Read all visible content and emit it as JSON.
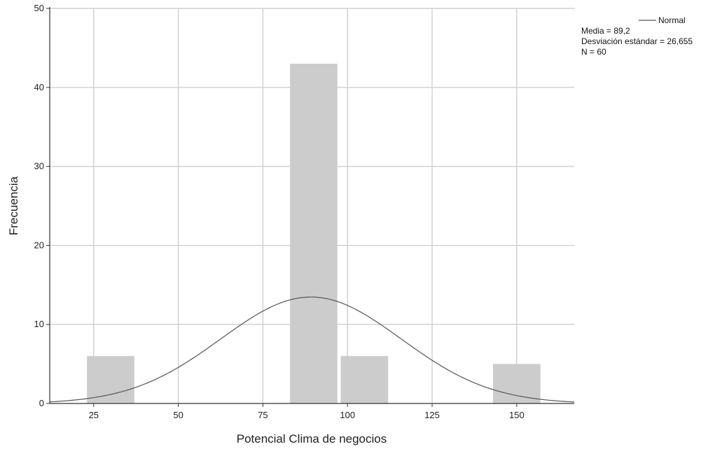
{
  "chart_data": {
    "type": "bar",
    "title": "",
    "xlabel": "Potencial Clima  de negocios",
    "ylabel": "Frecuencia",
    "xlim": [
      12,
      167
    ],
    "ylim": [
      0,
      50
    ],
    "x_ticks": [
      25,
      50,
      75,
      100,
      125,
      150
    ],
    "y_ticks": [
      0,
      10,
      20,
      30,
      40,
      50
    ],
    "grid": true,
    "bins": [
      {
        "center": 30,
        "width": 14,
        "count": 6
      },
      {
        "center": 90,
        "width": 14,
        "count": 43
      },
      {
        "center": 105,
        "width": 14,
        "count": 6
      },
      {
        "center": 150,
        "width": 14,
        "count": 5
      }
    ],
    "normal_curve": {
      "name": "Normal",
      "mean": 89.2,
      "sd": 26.655,
      "n": 60,
      "bin_width": 15
    },
    "legend": {
      "line_label": "Normal",
      "stats": [
        "Media = 89,2",
        "Desviación estándar = 26,655",
        "N = 60"
      ],
      "placement": "top-right"
    },
    "colors": {
      "bar": "#cccccc",
      "grid": "#cfcfcf",
      "curve": "#555555",
      "axis": "#333333"
    }
  }
}
